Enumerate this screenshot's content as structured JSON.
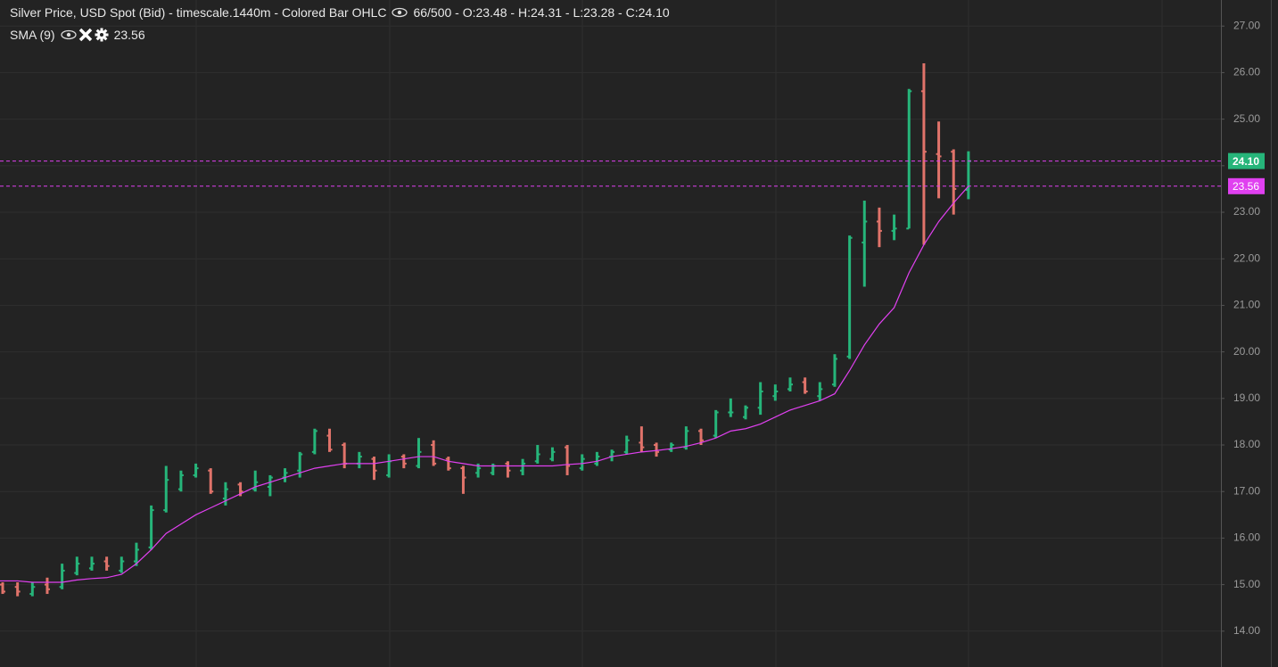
{
  "chart_data": {
    "type": "ohlc",
    "title": "Silver Price, USD Spot (Bid) - timescale.1440m - Colored Bar OHLC",
    "legend_text": "66/500 - O:23.48 - H:24.31 - L:23.28 - C:24.10",
    "up_color": "#26b57a",
    "down_color": "#e0736a",
    "open": [
      15.0,
      14.95,
      14.8,
      15.0,
      14.95,
      15.25,
      15.35,
      15.5,
      15.3,
      15.5,
      15.8,
      16.6,
      17.05,
      17.35,
      17.45,
      16.85,
      17.15,
      17.05,
      17.1,
      17.3,
      17.45,
      17.85,
      18.2,
      18.0,
      17.6,
      17.7,
      17.35,
      17.75,
      17.55,
      18.0,
      17.7,
      17.5,
      17.4,
      17.4,
      17.6,
      17.45,
      17.65,
      17.7,
      17.95,
      17.5,
      17.6,
      17.75,
      17.85,
      18.05,
      18.0,
      17.9,
      17.95,
      18.3,
      18.2,
      18.7,
      18.6,
      18.8,
      19.05,
      19.2,
      19.35,
      19.05,
      19.3,
      19.9,
      22.35,
      22.8,
      22.6,
      22.65,
      25.6,
      24.25,
      24.3,
      23.48
    ],
    "high": [
      15.05,
      15.05,
      15.05,
      15.15,
      15.45,
      15.6,
      15.6,
      15.6,
      15.6,
      15.9,
      16.7,
      17.55,
      17.45,
      17.6,
      17.5,
      17.2,
      17.2,
      17.45,
      17.35,
      17.5,
      17.85,
      18.35,
      18.35,
      18.05,
      17.85,
      17.75,
      17.8,
      17.8,
      18.15,
      18.1,
      17.75,
      17.55,
      17.6,
      17.6,
      17.65,
      17.7,
      18.0,
      17.95,
      18.0,
      17.8,
      17.85,
      17.9,
      18.2,
      18.4,
      18.05,
      18.05,
      18.4,
      18.35,
      18.75,
      19.0,
      18.85,
      19.35,
      19.3,
      19.45,
      19.45,
      19.35,
      19.95,
      22.5,
      23.25,
      23.1,
      22.95,
      25.65,
      26.2,
      24.95,
      24.35,
      24.31
    ],
    "low": [
      14.8,
      14.75,
      14.75,
      14.8,
      14.9,
      15.2,
      15.3,
      15.3,
      15.25,
      15.4,
      15.75,
      16.55,
      17.0,
      17.3,
      16.95,
      16.7,
      16.9,
      17.0,
      16.9,
      17.2,
      17.3,
      17.8,
      17.85,
      17.5,
      17.5,
      17.25,
      17.3,
      17.5,
      17.5,
      17.55,
      17.45,
      16.95,
      17.3,
      17.35,
      17.3,
      17.35,
      17.6,
      17.65,
      17.35,
      17.45,
      17.55,
      17.65,
      17.8,
      17.85,
      17.75,
      17.85,
      17.9,
      18.0,
      18.15,
      18.6,
      18.55,
      18.65,
      18.95,
      19.15,
      19.1,
      18.95,
      19.25,
      19.85,
      21.4,
      22.25,
      22.4,
      22.65,
      22.3,
      23.3,
      22.95,
      23.28
    ],
    "close": [
      14.85,
      14.85,
      14.95,
      14.9,
      15.3,
      15.45,
      15.45,
      15.4,
      15.5,
      15.75,
      16.6,
      17.25,
      17.35,
      17.5,
      17.0,
      17.05,
      17.0,
      17.2,
      17.3,
      17.4,
      17.8,
      18.3,
      17.9,
      17.6,
      17.75,
      17.45,
      17.65,
      17.6,
      17.85,
      17.6,
      17.5,
      17.3,
      17.5,
      17.55,
      17.45,
      17.6,
      17.8,
      17.85,
      17.55,
      17.7,
      17.75,
      17.85,
      18.1,
      17.95,
      17.85,
      18.0,
      18.3,
      18.1,
      18.7,
      18.7,
      18.8,
      19.15,
      19.15,
      19.3,
      19.15,
      19.2,
      19.85,
      22.45,
      22.8,
      22.6,
      22.65,
      25.6,
      24.3,
      24.2,
      23.5,
      24.1
    ],
    "last_label": "24.10",
    "sma": {
      "name": "SMA (9)",
      "color": "#e040f0",
      "value_label": "23.56",
      "values": [
        15.08,
        15.08,
        15.05,
        15.05,
        15.05,
        15.1,
        15.13,
        15.15,
        15.22,
        15.45,
        15.75,
        16.1,
        16.3,
        16.5,
        16.65,
        16.8,
        16.95,
        17.1,
        17.2,
        17.3,
        17.4,
        17.5,
        17.55,
        17.6,
        17.6,
        17.6,
        17.65,
        17.7,
        17.75,
        17.75,
        17.65,
        17.6,
        17.55,
        17.55,
        17.55,
        17.55,
        17.55,
        17.55,
        17.58,
        17.6,
        17.65,
        17.75,
        17.8,
        17.85,
        17.88,
        17.92,
        17.97,
        18.05,
        18.15,
        18.3,
        18.35,
        18.45,
        18.6,
        18.75,
        18.85,
        18.95,
        19.1,
        19.6,
        20.15,
        20.6,
        20.95,
        21.7,
        22.3,
        22.8,
        23.2,
        23.56
      ]
    },
    "ylim": [
      13.23,
      27.56
    ],
    "yticks": [
      {
        "value": 14,
        "label": "14.00"
      },
      {
        "value": 15,
        "label": "15.00"
      },
      {
        "value": 16,
        "label": "16.00"
      },
      {
        "value": 17,
        "label": "17.00"
      },
      {
        "value": 18,
        "label": "18.00"
      },
      {
        "value": 19,
        "label": "19.00"
      },
      {
        "value": 20,
        "label": "20.00"
      },
      {
        "value": 21,
        "label": "21.00"
      },
      {
        "value": 22,
        "label": "22.00"
      },
      {
        "value": 23,
        "label": "23.00"
      },
      {
        "value": 24,
        "label": "24.00"
      },
      {
        "value": 25,
        "label": "25.00"
      },
      {
        "value": 26,
        "label": "26.00"
      },
      {
        "value": 27,
        "label": "27.00"
      }
    ],
    "grid": true
  }
}
